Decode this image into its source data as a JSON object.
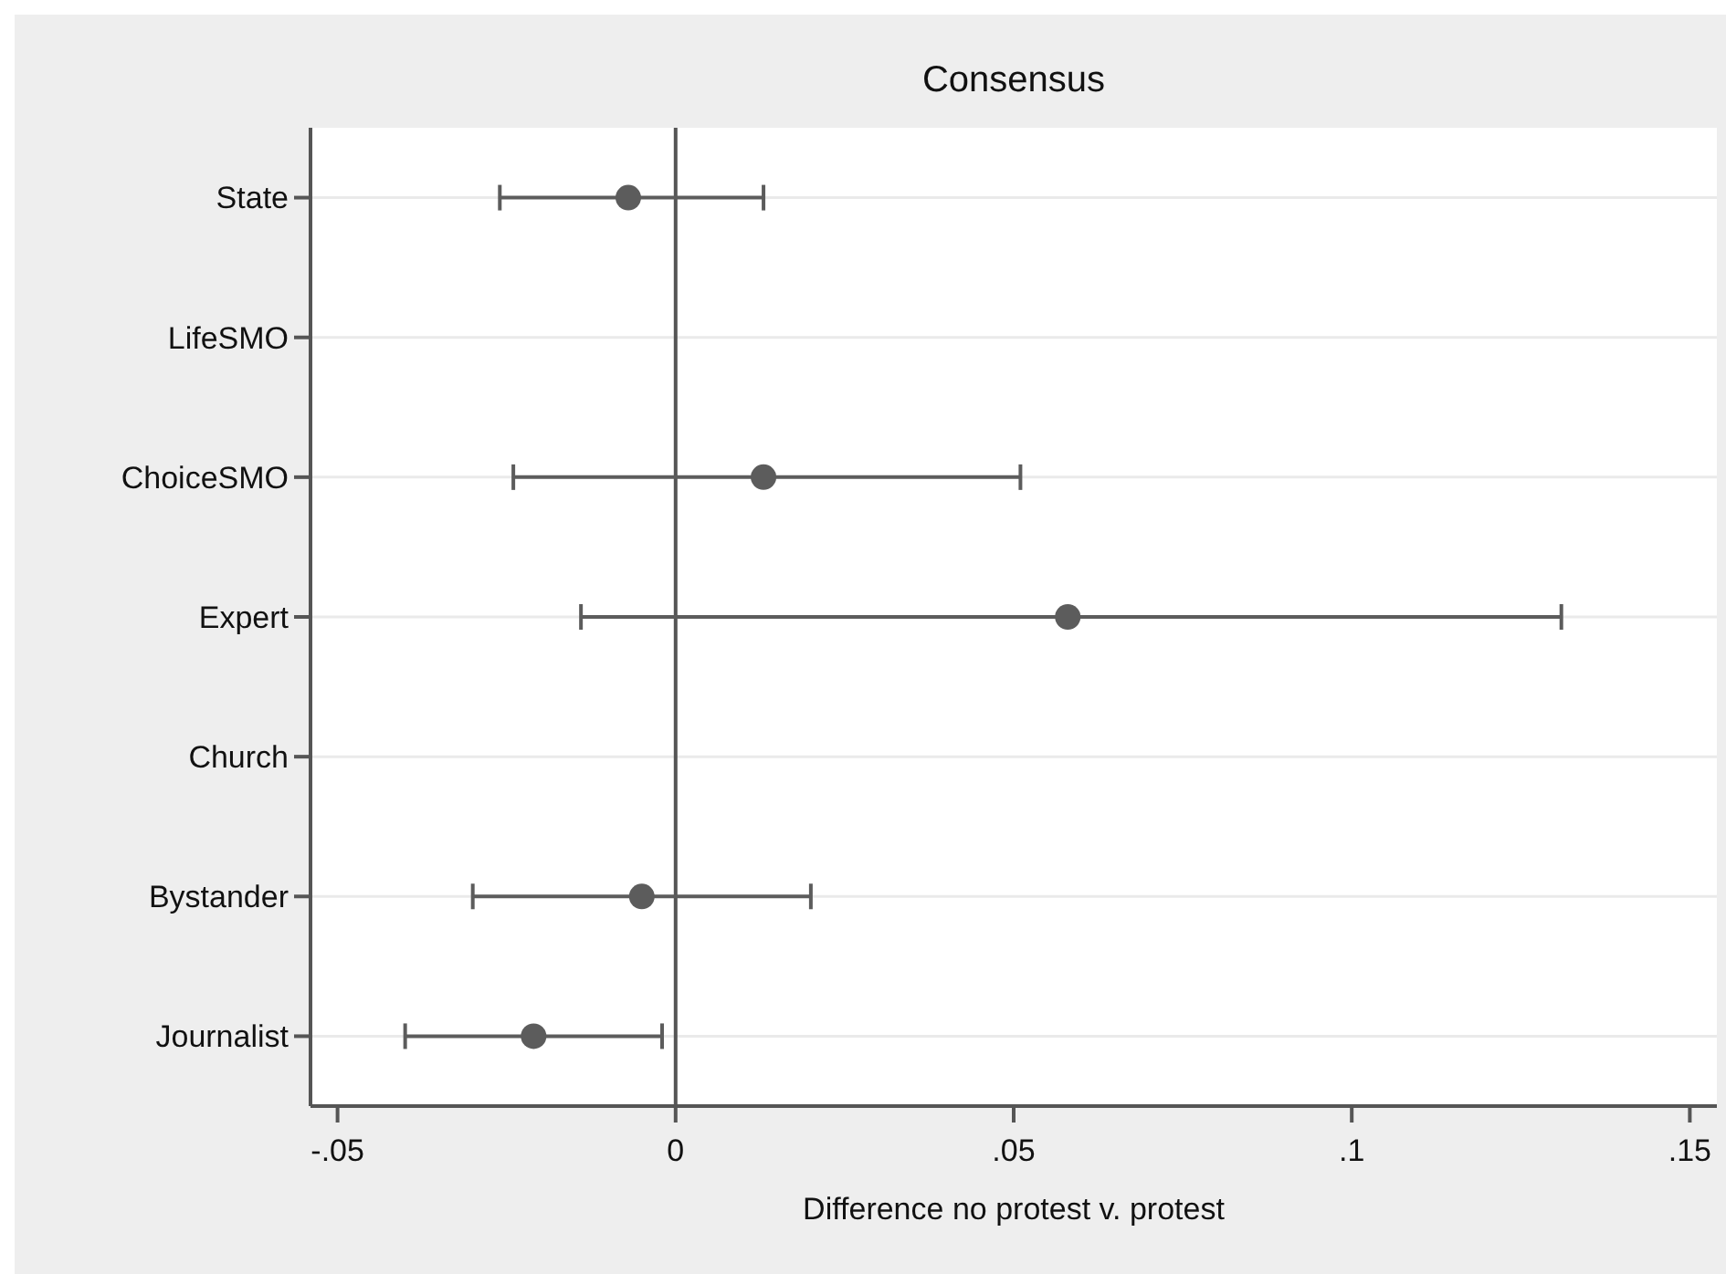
{
  "chart_data": {
    "type": "scatter",
    "title": "Consensus",
    "xlabel": "Difference no protest v. protest",
    "orientation": "horizontal",
    "categories": [
      "State",
      "LifeSMO",
      "ChoiceSMO",
      "Expert",
      "Church",
      "Bystander",
      "Journalist"
    ],
    "values": [
      -0.007,
      null,
      0.013,
      0.058,
      null,
      -0.005,
      -0.021
    ],
    "errors": [
      [
        -0.026,
        0.013
      ],
      null,
      [
        -0.024,
        0.051
      ],
      [
        -0.014,
        0.131
      ],
      null,
      [
        -0.03,
        0.02
      ],
      [
        -0.04,
        -0.002
      ]
    ],
    "color": "#5c5c5c",
    "marker": "circle",
    "grid": "y",
    "xlim": [
      -0.054,
      0.154
    ],
    "xticks": [
      {
        "value": -0.05,
        "label": "-.05"
      },
      0,
      {
        "value": 0.05,
        "label": ".05"
      },
      {
        "value": 0.1,
        "label": ".1"
      },
      {
        "value": 0.15,
        "label": ".15"
      }
    ],
    "ref_lines": [
      {
        "axis": "x",
        "value": 0,
        "color": "#555555"
      }
    ]
  }
}
